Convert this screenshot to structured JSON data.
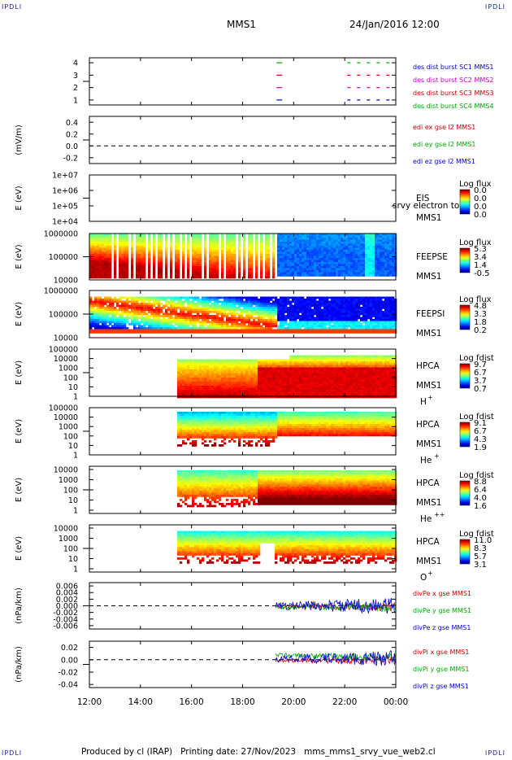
{
  "page": {
    "corner_tl": "IPDLI",
    "corner_tr": "IPDLI",
    "corner_bl": "IPDLI",
    "corner_br": "IPDLI",
    "mission": "MMS1",
    "datetime": "24/Jan/2016 12:00",
    "footer_produced": "Produced by cl (IRAP)",
    "footer_date": "Printing date: 27/Nov/2023",
    "footer_file": "mms_mms1_srvy_vue_web2.cl"
  },
  "chart_data": {
    "type": "multi-panel time series",
    "x": {
      "ticks": [
        "12:00",
        "14:00",
        "16:00",
        "18:00",
        "20:00",
        "22:00",
        "00:00"
      ],
      "range_hours": [
        12,
        24
      ]
    },
    "panels": [
      {
        "id": "des-dist-burst",
        "yticks": [
          "4",
          "3",
          "2",
          "1"
        ],
        "ylim": [
          0.6,
          4.4
        ],
        "legend": [
          {
            "label": "des dist burst SC1 MMS1",
            "color": "#0000cc"
          },
          {
            "label": "des dist burst SC2 MMS2",
            "color": "#cc00cc"
          },
          {
            "label": "des dist burst SC3 MMS3",
            "color": "#cc0000"
          },
          {
            "label": "des dist burst SC4 MMS4",
            "color": "#00aa00"
          }
        ],
        "series": [
          {
            "level": 4,
            "color": "#00aa00",
            "segments": [
              [
                19.33,
                19.55
              ],
              [
                22.1,
                24
              ]
            ]
          },
          {
            "level": 3,
            "color": "#cc0000",
            "segments": [
              [
                19.33,
                19.55
              ],
              [
                22.1,
                24
              ]
            ]
          },
          {
            "level": 2,
            "color": "#cc00cc",
            "segments": [
              [
                19.33,
                19.55
              ],
              [
                22.1,
                24
              ]
            ]
          },
          {
            "level": 1,
            "color": "#0000cc",
            "segments": [
              [
                19.33,
                19.55
              ],
              [
                22.1,
                24
              ]
            ]
          }
        ]
      },
      {
        "id": "edi-e-gse",
        "ylabel": "(mV/m)",
        "yticks": [
          "0.4",
          "0.2",
          "0.0",
          "-0.2"
        ],
        "ylim": [
          -0.3,
          0.5
        ],
        "zero_line": true,
        "legend": [
          {
            "label": "edi ex gse l2 MMS1",
            "color": "#cc0000"
          },
          {
            "label": "edi ey gse l2 MMS1",
            "color": "#00aa00"
          },
          {
            "label": "edi ez gse l2 MMS1",
            "color": "#0000cc"
          }
        ]
      },
      {
        "id": "eis",
        "ylabel": "E (eV)",
        "yticks": [
          "1e+07",
          "1e+06",
          "1e+05",
          "1e+04"
        ],
        "ylim": [
          4,
          7
        ],
        "instrument": [
          "EIS",
          "MMS1"
        ],
        "overlay_text": "srvy electron to",
        "colorbar": {
          "title": "Log flux",
          "labels": [
            "0.0",
            "0.0",
            "0.0",
            "0.0"
          ]
        }
      },
      {
        "id": "feeps-e",
        "ylabel": "E (eV)",
        "yticks": [
          "1000000",
          "100000",
          "10000"
        ],
        "ylim": [
          4,
          6
        ],
        "instrument": [
          "FEEPSE",
          "MMS1"
        ],
        "colorbar": {
          "title": "Log flux",
          "labels": [
            "5.3",
            "3.4",
            "1.4",
            "-0.5"
          ]
        }
      },
      {
        "id": "feeps-i",
        "ylabel": "E (eV)",
        "yticks": [
          "1000000",
          "100000",
          "10000"
        ],
        "ylim": [
          4,
          6
        ],
        "instrument": [
          "FEEPSI",
          "MMS1"
        ],
        "colorbar": {
          "title": "Log flux",
          "labels": [
            "4.8",
            "3.3",
            "1.8",
            "0.2"
          ]
        }
      },
      {
        "id": "hpca-h",
        "ylabel": "E (eV)",
        "yticks": [
          "100000",
          "10000",
          "1000",
          "100",
          "10",
          "1"
        ],
        "ylim": [
          0,
          5
        ],
        "instrument": [
          "HPCA",
          "MMS1"
        ],
        "species": "H",
        "charge": "+",
        "colorbar": {
          "title": "Log fdist",
          "labels": [
            "9.7",
            "6.7",
            "3.7",
            "0.7"
          ]
        }
      },
      {
        "id": "hpca-he",
        "ylabel": "E (eV)",
        "yticks": [
          "100000",
          "10000",
          "1000",
          "100",
          "10",
          "1"
        ],
        "ylim": [
          0,
          5
        ],
        "instrument": [
          "HPCA",
          "MMS1"
        ],
        "species": "He",
        "charge": "+",
        "colorbar": {
          "title": "Log fdist",
          "labels": [
            "9.1",
            "6.7",
            "4.3",
            "1.9"
          ]
        }
      },
      {
        "id": "hpca-he2",
        "ylabel": "E (eV)",
        "yticks": [
          "10000",
          "1000",
          "100",
          "10",
          "1"
        ],
        "ylim": [
          0,
          4.5
        ],
        "instrument": [
          "HPCA",
          "MMS1"
        ],
        "species": "He",
        "charge": "++",
        "colorbar": {
          "title": "Log fdist",
          "labels": [
            "8.8",
            "6.4",
            "4.0",
            "1.6"
          ]
        }
      },
      {
        "id": "hpca-o",
        "ylabel": "E (eV)",
        "yticks": [
          "10000",
          "1000",
          "100",
          "10",
          "1"
        ],
        "ylim": [
          0,
          4.5
        ],
        "instrument": [
          "HPCA",
          "MMS1"
        ],
        "species": "O",
        "charge": "+",
        "colorbar": {
          "title": "Log fdist",
          "labels": [
            "11.0",
            "8.3",
            "5.7",
            "3.1"
          ]
        }
      },
      {
        "id": "divpe",
        "ylabel": "(nPa/km)",
        "yticks": [
          "0.006",
          "0.004",
          "0.002",
          "0.000",
          "-0.002",
          "-0.004",
          "-0.006"
        ],
        "ylim": [
          -0.007,
          0.007
        ],
        "zero_line": true,
        "legend": [
          {
            "label": "divPe x gse MMS1",
            "color": "#cc0000"
          },
          {
            "label": "divPe y gse MMS1",
            "color": "#00aa00"
          },
          {
            "label": "divPe z gse MMS1",
            "color": "#0000cc"
          }
        ]
      },
      {
        "id": "divpi",
        "ylabel": "(nPa/km)",
        "yticks": [
          "0.02",
          "0.00",
          "-0.02",
          "-0.04"
        ],
        "ylim": [
          -0.045,
          0.03
        ],
        "zero_line": true,
        "legend": [
          {
            "label": "divPi x gse MMS1",
            "color": "#cc0000"
          },
          {
            "label": "divPi y gse MMS1",
            "color": "#00aa00"
          },
          {
            "label": "divPi z gse MMS1",
            "color": "#0000cc"
          }
        ]
      }
    ]
  }
}
